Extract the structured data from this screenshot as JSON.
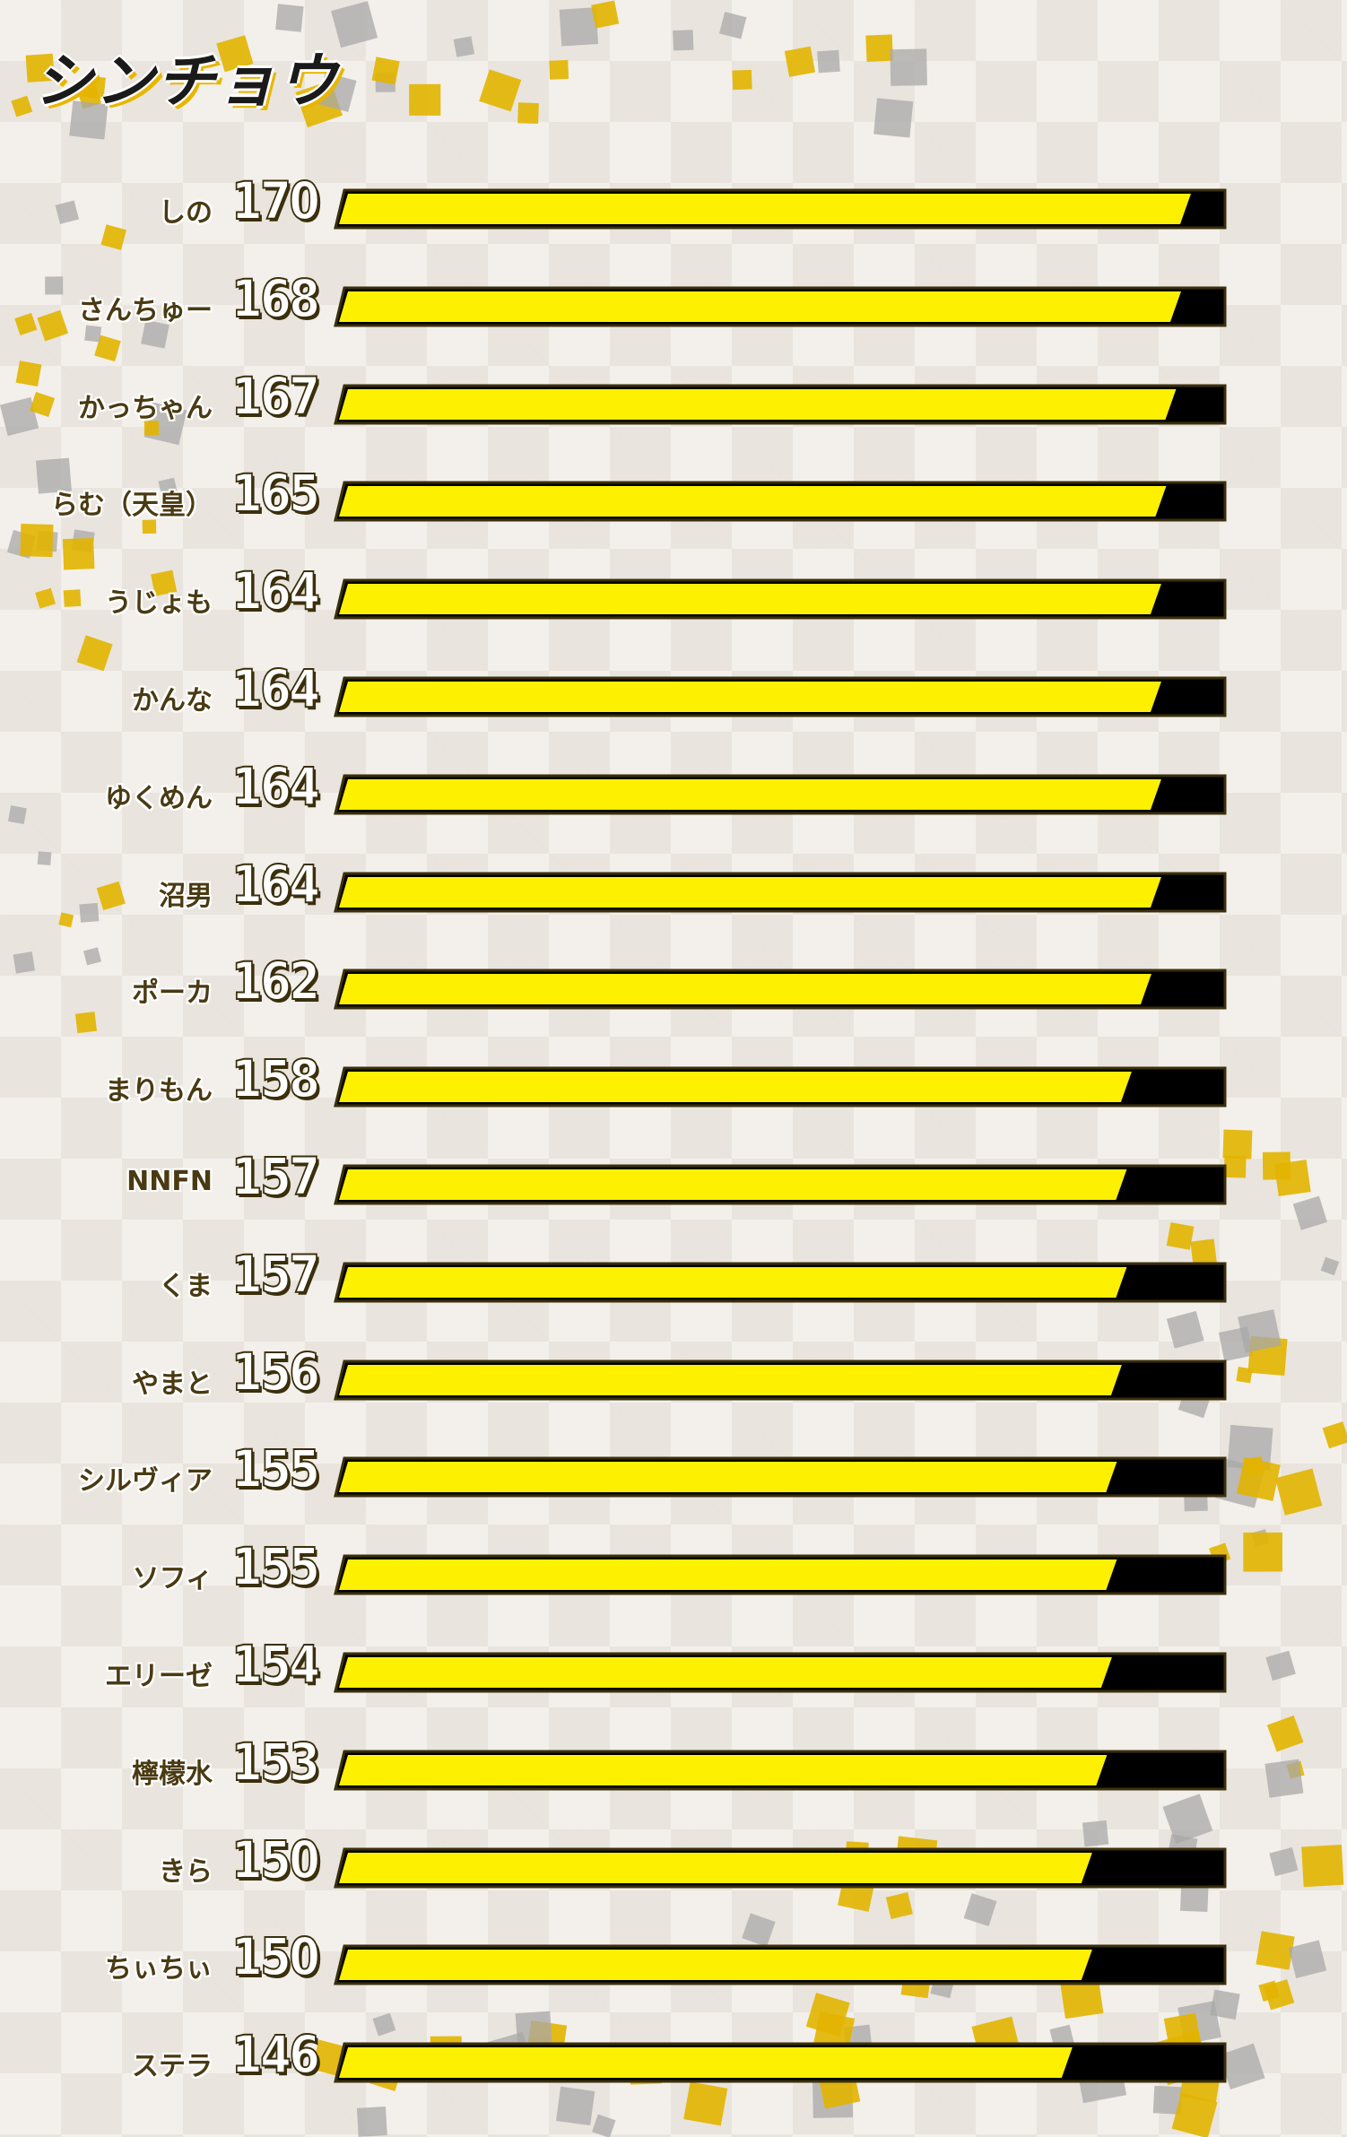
{
  "title": "シンチョウ",
  "colors": {
    "bar_fill": "#fdf000",
    "bar_track": "#000000",
    "bar_border": "#3b2f0c",
    "gold": "#e2b400",
    "silver": "#a8a8a8"
  },
  "chart_data": {
    "type": "bar",
    "orientation": "horizontal",
    "title": "シンチョウ",
    "xlim": [
      0,
      178
    ],
    "categories": [
      "しの",
      "さんちゅー",
      "かっちゃん",
      "らむ（天皇）",
      "うじょも",
      "かんな",
      "ゆくめん",
      "沼男",
      "ポーカ",
      "まりもん",
      "NNFN",
      "くま",
      "やまと",
      "シルヴィア",
      "ソフィ",
      "エリーゼ",
      "檸檬水",
      "きら",
      "ちぃちぃ",
      "ステラ"
    ],
    "values": [
      170,
      168,
      167,
      165,
      164,
      164,
      164,
      164,
      162,
      158,
      157,
      157,
      156,
      155,
      155,
      154,
      153,
      150,
      150,
      146
    ],
    "labels": [
      "170",
      "168",
      "167",
      "165",
      "164",
      "164",
      "164",
      "164",
      "162",
      "158",
      "157",
      "157",
      "156",
      "155",
      "155",
      "154",
      "153",
      "150",
      "150",
      "146"
    ]
  }
}
